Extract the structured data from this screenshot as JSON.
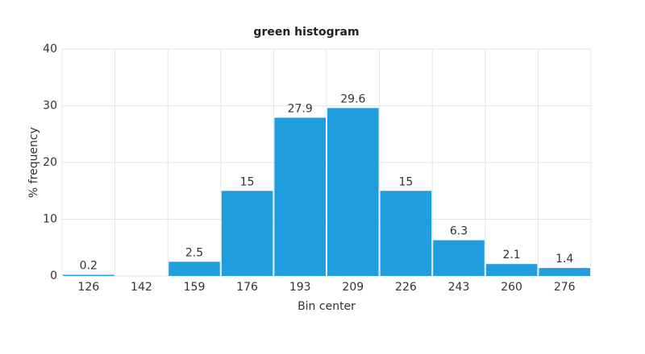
{
  "chart_data": {
    "type": "bar",
    "title": "green histogram",
    "x_label": "Bin center",
    "y_label": "% frequency",
    "categories": [
      "126",
      "142",
      "159",
      "176",
      "193",
      "209",
      "226",
      "243",
      "260",
      "276"
    ],
    "values": [
      0.2,
      null,
      2.5,
      15,
      27.9,
      29.6,
      15,
      6.3,
      2.1,
      1.4
    ],
    "color": "#1f9ddd",
    "ylim": [
      0,
      40
    ],
    "yticks": [
      0,
      10,
      20,
      30,
      40
    ],
    "grid": true
  }
}
